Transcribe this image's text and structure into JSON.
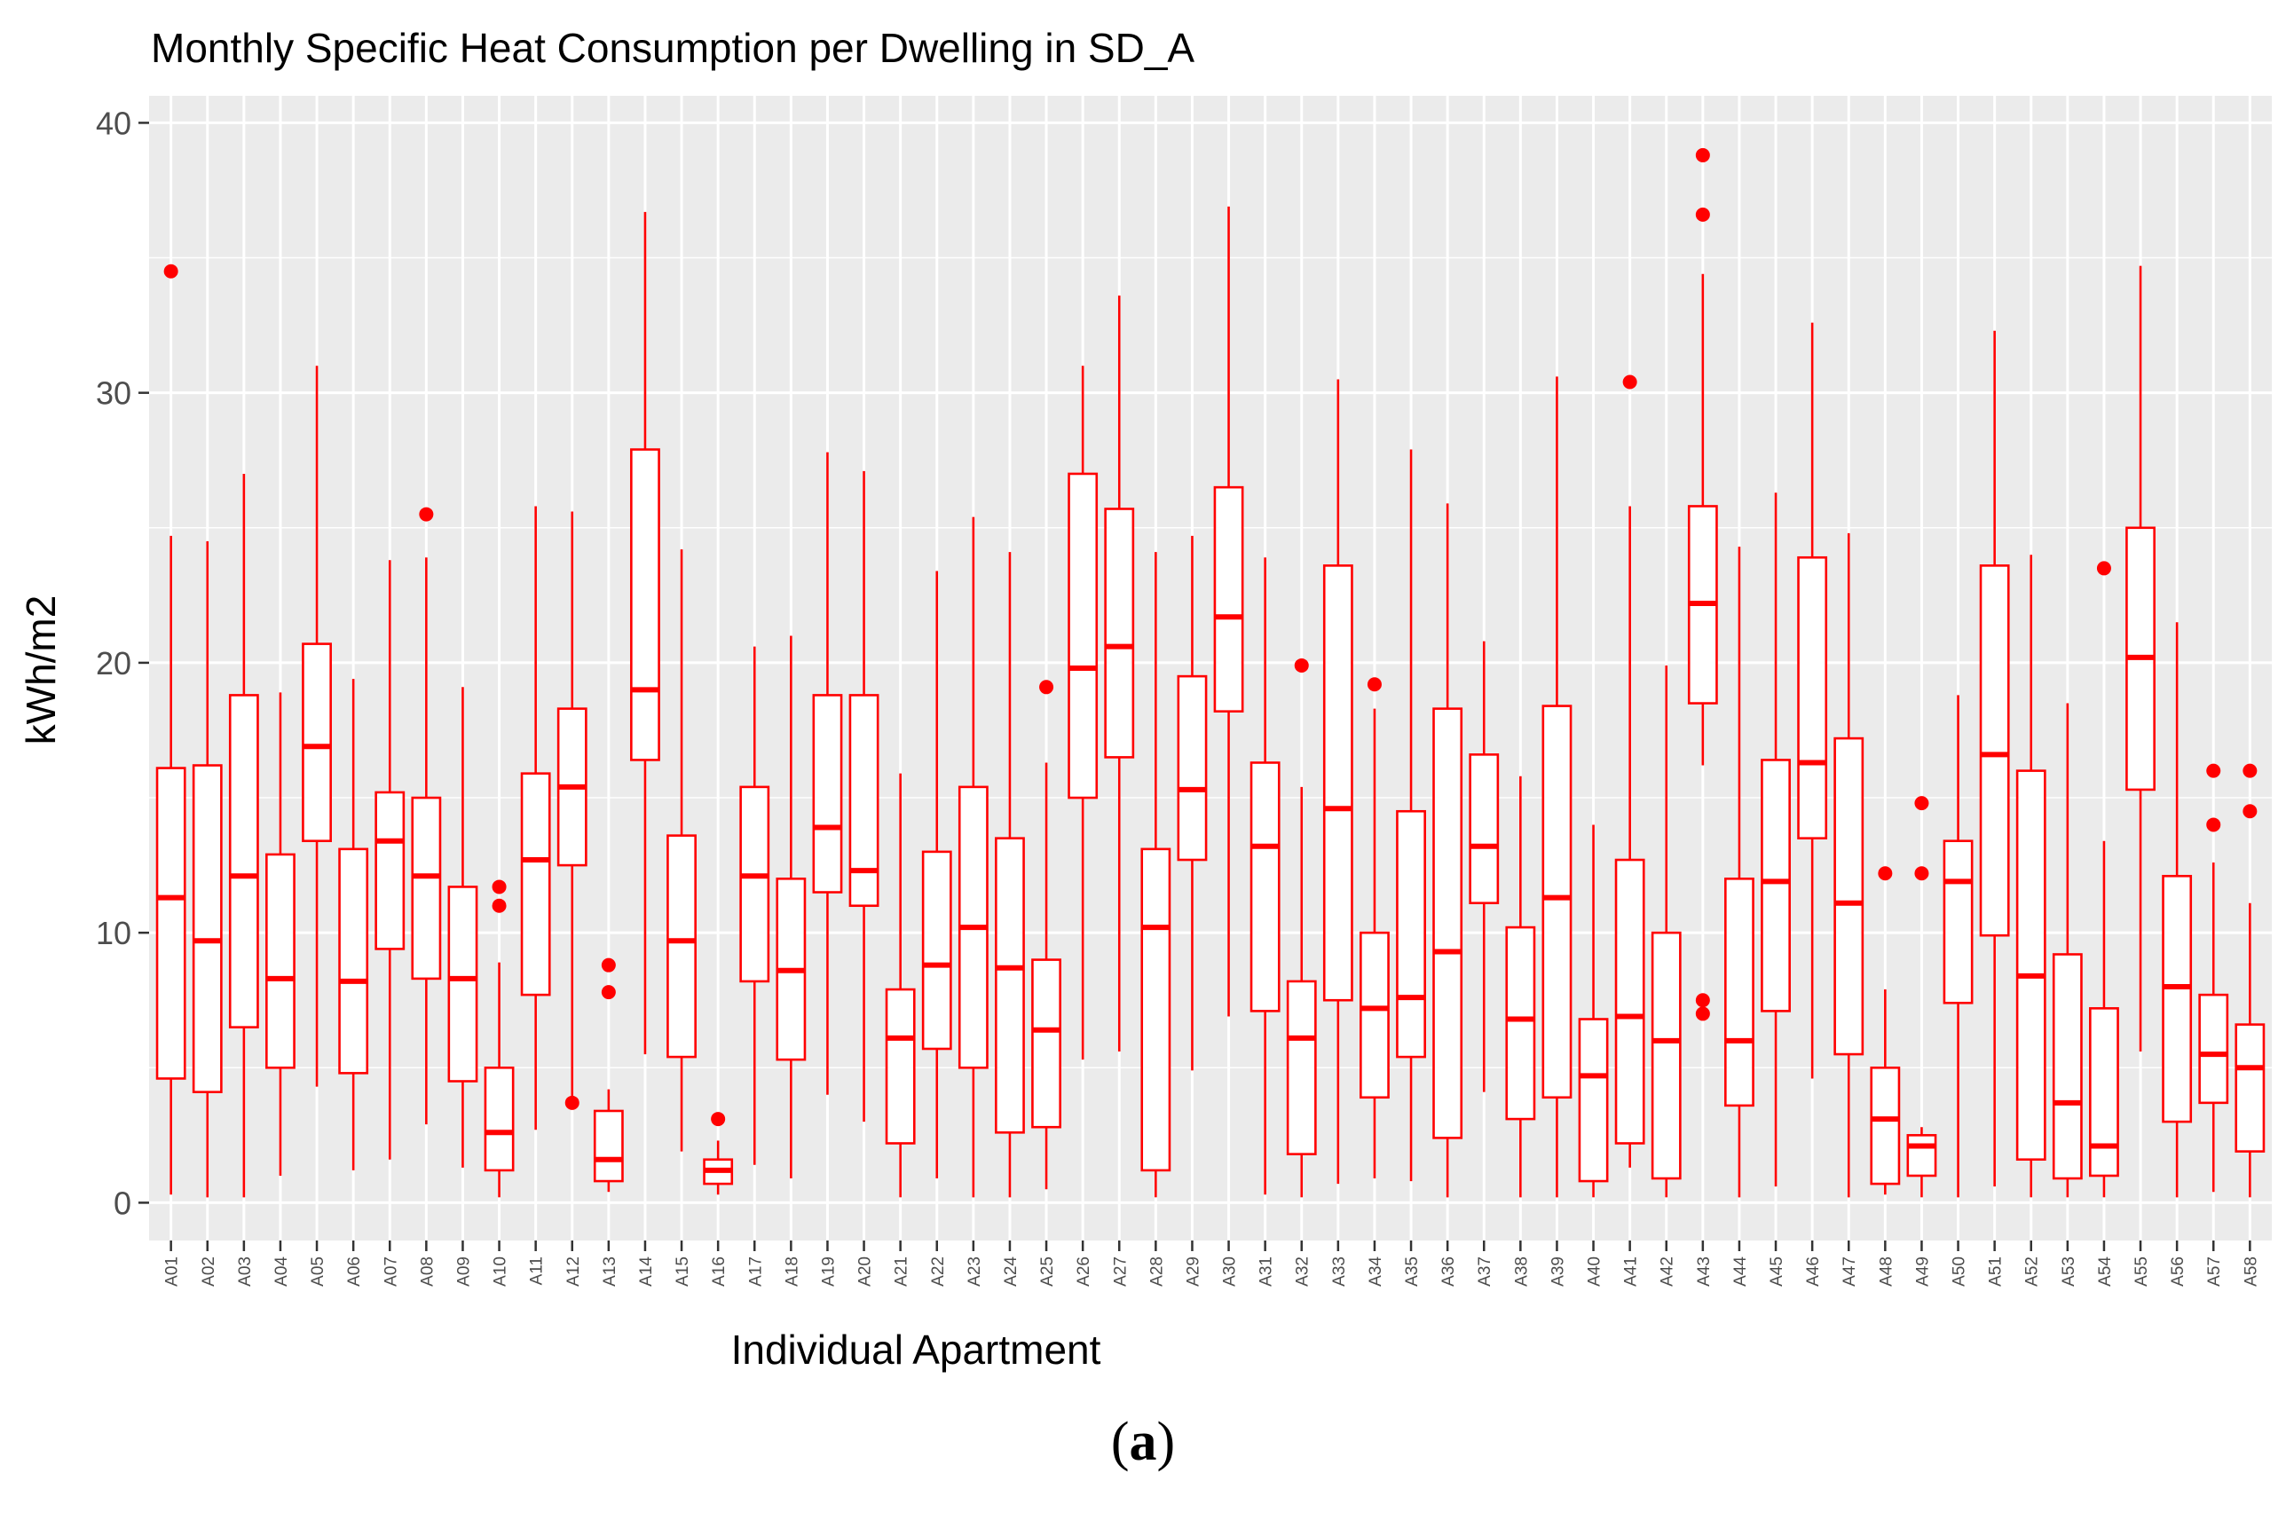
{
  "chart_data": {
    "type": "boxplot",
    "title": "Monthly Specific Heat Consumption per Dwelling in SD_A",
    "xlabel": "Individual Apartment",
    "ylabel": "kWh/m2",
    "ylim": [
      -1.4,
      41
    ],
    "y_ticks": [
      0,
      10,
      20,
      30,
      40
    ],
    "grid": true,
    "colors": {
      "box": "#ff0000",
      "panel": "#ebebeb",
      "grid": "#ffffff",
      "axis_text": "#4d4d4d"
    },
    "series": [
      {
        "name": "A01",
        "min": 0.3,
        "q1": 4.6,
        "median": 11.3,
        "q3": 16.1,
        "max": 24.7,
        "outliers": [
          34.5
        ]
      },
      {
        "name": "A02",
        "min": 0.2,
        "q1": 4.1,
        "median": 9.7,
        "q3": 16.2,
        "max": 24.5,
        "outliers": []
      },
      {
        "name": "A03",
        "min": 0.2,
        "q1": 6.5,
        "median": 12.1,
        "q3": 18.8,
        "max": 27.0,
        "outliers": []
      },
      {
        "name": "A04",
        "min": 1.0,
        "q1": 5.0,
        "median": 8.3,
        "q3": 12.9,
        "max": 18.9,
        "outliers": []
      },
      {
        "name": "A05",
        "min": 4.3,
        "q1": 13.4,
        "median": 16.9,
        "q3": 20.7,
        "max": 31.0,
        "outliers": []
      },
      {
        "name": "A06",
        "min": 1.2,
        "q1": 4.8,
        "median": 8.2,
        "q3": 13.1,
        "max": 19.4,
        "outliers": []
      },
      {
        "name": "A07",
        "min": 1.6,
        "q1": 9.4,
        "median": 13.4,
        "q3": 15.2,
        "max": 23.8,
        "outliers": []
      },
      {
        "name": "A08",
        "min": 2.9,
        "q1": 8.3,
        "median": 12.1,
        "q3": 15.0,
        "max": 23.9,
        "outliers": [
          25.5
        ]
      },
      {
        "name": "A09",
        "min": 1.3,
        "q1": 4.5,
        "median": 8.3,
        "q3": 11.7,
        "max": 19.1,
        "outliers": []
      },
      {
        "name": "A10",
        "min": 0.2,
        "q1": 1.2,
        "median": 2.6,
        "q3": 5.0,
        "max": 8.9,
        "outliers": [
          11.0,
          11.7
        ]
      },
      {
        "name": "A11",
        "min": 2.7,
        "q1": 7.7,
        "median": 12.7,
        "q3": 15.9,
        "max": 25.8,
        "outliers": []
      },
      {
        "name": "A12",
        "min": 3.8,
        "q1": 12.5,
        "median": 15.4,
        "q3": 18.3,
        "max": 25.6,
        "outliers": [
          3.7
        ]
      },
      {
        "name": "A13",
        "min": 0.4,
        "q1": 0.8,
        "median": 1.6,
        "q3": 3.4,
        "max": 4.2,
        "outliers": [
          7.8,
          8.8
        ]
      },
      {
        "name": "A14",
        "min": 5.5,
        "q1": 16.4,
        "median": 19.0,
        "q3": 27.9,
        "max": 36.7,
        "outliers": []
      },
      {
        "name": "A15",
        "min": 1.9,
        "q1": 5.4,
        "median": 9.7,
        "q3": 13.6,
        "max": 24.2,
        "outliers": []
      },
      {
        "name": "A16",
        "min": 0.3,
        "q1": 0.7,
        "median": 1.2,
        "q3": 1.6,
        "max": 2.3,
        "outliers": [
          3.1
        ]
      },
      {
        "name": "A17",
        "min": 1.4,
        "q1": 8.2,
        "median": 12.1,
        "q3": 15.4,
        "max": 20.6,
        "outliers": []
      },
      {
        "name": "A18",
        "min": 0.9,
        "q1": 5.3,
        "median": 8.6,
        "q3": 12.0,
        "max": 21.0,
        "outliers": []
      },
      {
        "name": "A19",
        "min": 4.0,
        "q1": 11.5,
        "median": 13.9,
        "q3": 18.8,
        "max": 27.8,
        "outliers": []
      },
      {
        "name": "A20",
        "min": 3.0,
        "q1": 11.0,
        "median": 12.3,
        "q3": 18.8,
        "max": 27.1,
        "outliers": []
      },
      {
        "name": "A21",
        "min": 0.2,
        "q1": 2.2,
        "median": 6.1,
        "q3": 7.9,
        "max": 15.9,
        "outliers": []
      },
      {
        "name": "A22",
        "min": 0.9,
        "q1": 5.7,
        "median": 8.8,
        "q3": 13.0,
        "max": 23.4,
        "outliers": []
      },
      {
        "name": "A23",
        "min": 0.2,
        "q1": 5.0,
        "median": 10.2,
        "q3": 15.4,
        "max": 25.4,
        "outliers": []
      },
      {
        "name": "A24",
        "min": 0.2,
        "q1": 2.6,
        "median": 8.7,
        "q3": 13.5,
        "max": 24.1,
        "outliers": []
      },
      {
        "name": "A25",
        "min": 0.5,
        "q1": 2.8,
        "median": 6.4,
        "q3": 9.0,
        "max": 16.3,
        "outliers": [
          19.1
        ]
      },
      {
        "name": "A26",
        "min": 5.3,
        "q1": 15.0,
        "median": 19.8,
        "q3": 27.0,
        "max": 31.0,
        "outliers": []
      },
      {
        "name": "A27",
        "min": 5.6,
        "q1": 16.5,
        "median": 20.6,
        "q3": 25.7,
        "max": 33.6,
        "outliers": []
      },
      {
        "name": "A28",
        "min": 0.2,
        "q1": 1.2,
        "median": 10.2,
        "q3": 13.1,
        "max": 24.1,
        "outliers": []
      },
      {
        "name": "A29",
        "min": 4.9,
        "q1": 12.7,
        "median": 15.3,
        "q3": 19.5,
        "max": 24.7,
        "outliers": []
      },
      {
        "name": "A30",
        "min": 6.9,
        "q1": 18.2,
        "median": 21.7,
        "q3": 26.5,
        "max": 36.9,
        "outliers": []
      },
      {
        "name": "A31",
        "min": 0.3,
        "q1": 7.1,
        "median": 13.2,
        "q3": 16.3,
        "max": 23.9,
        "outliers": []
      },
      {
        "name": "A32",
        "min": 0.2,
        "q1": 1.8,
        "median": 6.1,
        "q3": 8.2,
        "max": 15.4,
        "outliers": [
          19.9
        ]
      },
      {
        "name": "A33",
        "min": 0.7,
        "q1": 7.5,
        "median": 14.6,
        "q3": 23.6,
        "max": 30.5,
        "outliers": []
      },
      {
        "name": "A34",
        "min": 0.9,
        "q1": 3.9,
        "median": 7.2,
        "q3": 10.0,
        "max": 18.3,
        "outliers": [
          19.2
        ]
      },
      {
        "name": "A35",
        "min": 0.8,
        "q1": 5.4,
        "median": 7.6,
        "q3": 14.5,
        "max": 27.9,
        "outliers": []
      },
      {
        "name": "A36",
        "min": 0.2,
        "q1": 2.4,
        "median": 9.3,
        "q3": 18.3,
        "max": 25.9,
        "outliers": []
      },
      {
        "name": "A37",
        "min": 4.1,
        "q1": 11.1,
        "median": 13.2,
        "q3": 16.6,
        "max": 20.8,
        "outliers": []
      },
      {
        "name": "A38",
        "min": 0.2,
        "q1": 3.1,
        "median": 6.8,
        "q3": 10.2,
        "max": 15.8,
        "outliers": []
      },
      {
        "name": "A39",
        "min": 0.2,
        "q1": 3.9,
        "median": 11.3,
        "q3": 18.4,
        "max": 30.6,
        "outliers": []
      },
      {
        "name": "A40",
        "min": 0.2,
        "q1": 0.8,
        "median": 4.7,
        "q3": 6.8,
        "max": 14.0,
        "outliers": []
      },
      {
        "name": "A41",
        "min": 1.3,
        "q1": 2.2,
        "median": 6.9,
        "q3": 12.7,
        "max": 25.8,
        "outliers": [
          30.4
        ]
      },
      {
        "name": "A42",
        "min": 0.2,
        "q1": 0.9,
        "median": 6.0,
        "q3": 10.0,
        "max": 19.9,
        "outliers": []
      },
      {
        "name": "A43",
        "min": 16.2,
        "q1": 18.5,
        "median": 22.2,
        "q3": 25.8,
        "max": 34.4,
        "outliers": [
          7.0,
          7.5,
          36.6,
          38.8
        ]
      },
      {
        "name": "A44",
        "min": 0.2,
        "q1": 3.6,
        "median": 6.0,
        "q3": 12.0,
        "max": 24.3,
        "outliers": []
      },
      {
        "name": "A45",
        "min": 0.6,
        "q1": 7.1,
        "median": 11.9,
        "q3": 16.4,
        "max": 26.3,
        "outliers": []
      },
      {
        "name": "A46",
        "min": 4.6,
        "q1": 13.5,
        "median": 16.3,
        "q3": 23.9,
        "max": 32.6,
        "outliers": []
      },
      {
        "name": "A47",
        "min": 0.2,
        "q1": 5.5,
        "median": 11.1,
        "q3": 17.2,
        "max": 24.8,
        "outliers": []
      },
      {
        "name": "A48",
        "min": 0.3,
        "q1": 0.7,
        "median": 3.1,
        "q3": 5.0,
        "max": 7.9,
        "outliers": [
          12.2
        ]
      },
      {
        "name": "A49",
        "min": 0.2,
        "q1": 1.0,
        "median": 2.1,
        "q3": 2.5,
        "max": 2.8,
        "outliers": [
          12.2,
          14.8
        ]
      },
      {
        "name": "A50",
        "min": 0.2,
        "q1": 7.4,
        "median": 11.9,
        "q3": 13.4,
        "max": 18.8,
        "outliers": []
      },
      {
        "name": "A51",
        "min": 0.6,
        "q1": 9.9,
        "median": 16.6,
        "q3": 23.6,
        "max": 32.3,
        "outliers": []
      },
      {
        "name": "A52",
        "min": 0.2,
        "q1": 1.6,
        "median": 8.4,
        "q3": 16.0,
        "max": 24.0,
        "outliers": []
      },
      {
        "name": "A53",
        "min": 0.2,
        "q1": 0.9,
        "median": 3.7,
        "q3": 9.2,
        "max": 18.5,
        "outliers": []
      },
      {
        "name": "A54",
        "min": 0.2,
        "q1": 1.0,
        "median": 2.1,
        "q3": 7.2,
        "max": 13.4,
        "outliers": [
          23.5
        ]
      },
      {
        "name": "A55",
        "min": 5.6,
        "q1": 15.3,
        "median": 20.2,
        "q3": 25.0,
        "max": 34.7,
        "outliers": []
      },
      {
        "name": "A56",
        "min": 0.2,
        "q1": 3.0,
        "median": 8.0,
        "q3": 12.1,
        "max": 21.5,
        "outliers": []
      },
      {
        "name": "A57",
        "min": 0.4,
        "q1": 3.7,
        "median": 5.5,
        "q3": 7.7,
        "max": 12.6,
        "outliers": [
          14.0,
          16.0
        ]
      },
      {
        "name": "A58",
        "min": 0.2,
        "q1": 1.9,
        "median": 5.0,
        "q3": 6.6,
        "max": 11.1,
        "outliers": [
          14.5,
          16.0
        ]
      }
    ]
  },
  "caption": {
    "label": "a",
    "open": "(",
    "close": ")"
  }
}
